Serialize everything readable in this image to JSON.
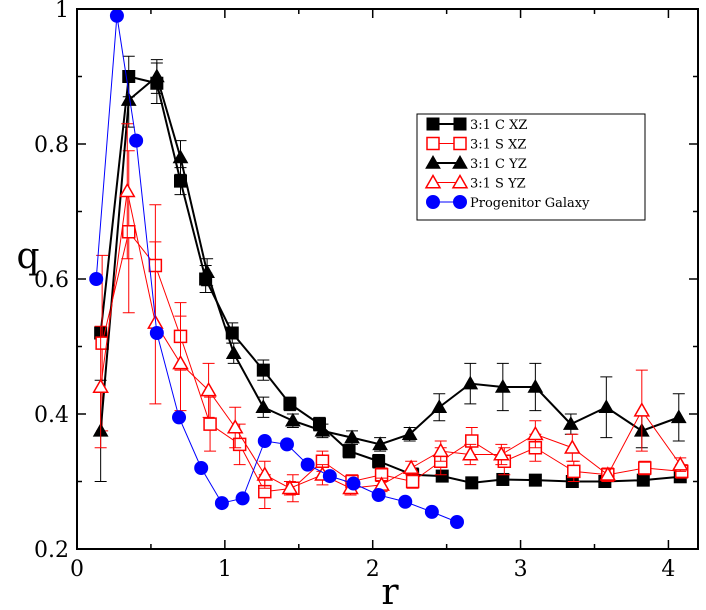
{
  "chart_data": {
    "type": "line",
    "title": "",
    "xlabel": "r",
    "ylabel": "q",
    "xlim": [
      0,
      4.2
    ],
    "ylim": [
      0.2,
      1.0
    ],
    "x_ticks": [
      0,
      1,
      2,
      3,
      4
    ],
    "y_ticks": [
      0.2,
      0.4,
      0.6,
      0.8,
      1.0
    ],
    "x_tick_labels": [
      "0",
      "1",
      "2",
      "3",
      "4"
    ],
    "y_tick_labels": [
      "0.2",
      "0.4",
      "0.6",
      "0.8",
      "1"
    ],
    "legend_position": "top-right",
    "series": [
      {
        "name": "3:1 C XZ",
        "color": "#000000",
        "marker": "square-filled",
        "x": [
          0.16,
          0.35,
          0.54,
          0.7,
          0.87,
          1.05,
          1.26,
          1.44,
          1.64,
          1.84,
          2.04,
          2.27,
          2.47,
          2.67,
          2.88,
          3.1,
          3.35,
          3.57,
          3.83,
          4.08
        ],
        "y": [
          0.52,
          0.9,
          0.89,
          0.745,
          0.6,
          0.52,
          0.465,
          0.415,
          0.385,
          0.345,
          0.33,
          0.31,
          0.308,
          0.298,
          0.303,
          0.302,
          0.3,
          0.3,
          0.302,
          0.307
        ],
        "err": [
          0.0,
          0.03,
          0.03,
          0.02,
          0.02,
          0.015,
          0.015,
          0.01,
          0.01,
          0.01,
          0.01,
          0.01,
          0.005,
          0.005,
          0.005,
          0.005,
          0.005,
          0.005,
          0.005,
          0.005
        ]
      },
      {
        "name": "3:1 S XZ",
        "color": "#ff0000",
        "marker": "square-open",
        "x": [
          0.17,
          0.35,
          0.53,
          0.7,
          0.9,
          1.1,
          1.27,
          1.46,
          1.66,
          1.86,
          2.06,
          2.27,
          2.46,
          2.67,
          2.89,
          3.1,
          3.36,
          3.59,
          3.84,
          4.09
        ],
        "y": [
          0.505,
          0.67,
          0.62,
          0.515,
          0.385,
          0.355,
          0.285,
          0.29,
          0.33,
          0.3,
          0.31,
          0.3,
          0.33,
          0.36,
          0.33,
          0.35,
          0.315,
          0.31,
          0.32,
          0.315
        ],
        "err": [
          0.13,
          0.12,
          0.09,
          0.05,
          0.04,
          0.03,
          0.025,
          0.02,
          0.015,
          0.01,
          0.01,
          0.01,
          0.02,
          0.02,
          0.02,
          0.02,
          0.015,
          0.01,
          0.01,
          0.01
        ]
      },
      {
        "name": "3:1 C YZ",
        "color": "#000000",
        "marker": "triangle-filled",
        "x": [
          0.16,
          0.35,
          0.54,
          0.7,
          0.88,
          1.06,
          1.26,
          1.46,
          1.66,
          1.86,
          2.05,
          2.25,
          2.45,
          2.66,
          2.88,
          3.1,
          3.34,
          3.58,
          3.82,
          4.07
        ],
        "y": [
          0.375,
          0.865,
          0.9,
          0.78,
          0.61,
          0.49,
          0.41,
          0.39,
          0.375,
          0.365,
          0.355,
          0.37,
          0.41,
          0.445,
          0.44,
          0.44,
          0.385,
          0.41,
          0.375,
          0.395
        ],
        "err": [
          0.075,
          0.04,
          0.025,
          0.025,
          0.02,
          0.015,
          0.015,
          0.01,
          0.01,
          0.01,
          0.01,
          0.01,
          0.02,
          0.03,
          0.035,
          0.035,
          0.015,
          0.045,
          0.025,
          0.035
        ]
      },
      {
        "name": "3:1 S YZ",
        "color": "#ff0000",
        "marker": "triangle-open",
        "x": [
          0.16,
          0.34,
          0.53,
          0.7,
          0.89,
          1.07,
          1.27,
          1.44,
          1.66,
          1.85,
          2.06,
          2.26,
          2.46,
          2.66,
          2.87,
          3.1,
          3.35,
          3.59,
          3.82,
          4.08
        ],
        "y": [
          0.44,
          0.73,
          0.535,
          0.475,
          0.435,
          0.38,
          0.31,
          0.29,
          0.31,
          0.29,
          0.295,
          0.32,
          0.345,
          0.34,
          0.34,
          0.37,
          0.35,
          0.31,
          0.405,
          0.325
        ],
        "err": [
          0.09,
          0.1,
          0.12,
          0.07,
          0.04,
          0.03,
          0.02,
          0.01,
          0.015,
          0.01,
          0.01,
          0.01,
          0.015,
          0.015,
          0.015,
          0.02,
          0.02,
          0.01,
          0.06,
          0.01
        ]
      },
      {
        "name": "Progenitor Galaxy",
        "color": "#0000ff",
        "marker": "circle-filled",
        "x": [
          0.13,
          0.27,
          0.4,
          0.54,
          0.69,
          0.84,
          0.98,
          1.12,
          1.27,
          1.42,
          1.56,
          1.71,
          1.87,
          2.04,
          2.22,
          2.4,
          2.57
        ],
        "y": [
          0.6,
          0.99,
          0.805,
          0.52,
          0.395,
          0.32,
          0.268,
          0.275,
          0.36,
          0.355,
          0.325,
          0.308,
          0.297,
          0.28,
          0.27,
          0.255,
          0.24
        ],
        "err": []
      }
    ]
  }
}
